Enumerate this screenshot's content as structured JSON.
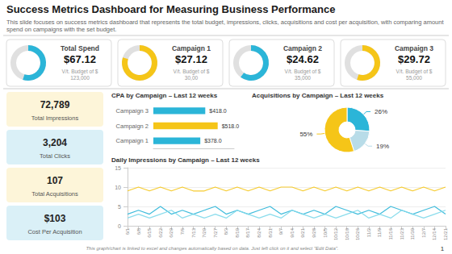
{
  "chart_data": [
    {
      "type": "text",
      "title": "Success Metrics Dashboard for Measuring Business Performance",
      "subtitle": "This slide focuses on success metrics dashboard that represents the total budget, impressions, clicks, acquisitions and cost per acquisition, with comparing amount spend on campaigns with the set budget.",
      "annotations": [
        "This graph/chart is linked to excel and changes automatically based on data. Just left click on it and select \"Edit Data\".",
        "1"
      ]
    },
    {
      "type": "ring",
      "title": "Total Spend",
      "values": [
        0.55
      ],
      "color": "#2bb5d8",
      "annotations": [
        "$67.12",
        "V/t. Budget of $\n123,000"
      ]
    },
    {
      "type": "ring",
      "title": "Campaign 1",
      "values": [
        0.8
      ],
      "color": "#f5c518",
      "annotations": [
        "$27.12",
        "V/t. Budget of $\n30,00"
      ]
    },
    {
      "type": "ring",
      "title": "Campaign 2",
      "values": [
        0.6
      ],
      "color": "#2bb5d8",
      "annotations": [
        "$24.62",
        "V/t. Budget of $\n35,000"
      ]
    },
    {
      "type": "ring",
      "title": "Campaign 3",
      "values": [
        0.55
      ],
      "color": "#f5c518",
      "annotations": [
        "$29.72",
        "V/t. Budget of $\n55,000"
      ]
    },
    {
      "type": "tiles",
      "annotations": [
        "72,789",
        "Total Impressions",
        "3,204",
        "Total Clicks",
        "107",
        "Total Acquisitions",
        "$103",
        "Cost Per Acquisition"
      ],
      "colors": [
        "#fdf5d9",
        "#daf0f7",
        "#fdf5d9",
        "#daf0f7"
      ]
    },
    {
      "type": "bar",
      "orientation": "horizontal",
      "title": "CPA by Campaign – Last 12 weeks",
      "categories": [
        "Campaign 1",
        "Campaign 2",
        "Campaign 3"
      ],
      "values": [
        378.0,
        518.0,
        418.0
      ],
      "value_labels": [
        "$378.0",
        "$518.0",
        "$418.0"
      ],
      "data_labels": true,
      "colors": [
        "#2bb5d8",
        "#f5c518",
        "#2bb5d8"
      ],
      "xlim": [
        0,
        650
      ],
      "xticks": [],
      "tick_labels": "y",
      "grid": false
    },
    {
      "type": "pie",
      "title": "Acquisitions by Campaign – Last 12 weeks",
      "values": [
        26,
        19,
        55
      ],
      "value_labels": [
        "26%",
        "19%",
        "55%"
      ],
      "data_labels": true,
      "colors": [
        "#2bb5d8",
        "#b8dce8",
        "#f5c518"
      ]
    },
    {
      "type": "line",
      "title": "Daily Impressions by Campaign – Last 12 weeks",
      "categories": [
        "6/1",
        "6/8",
        "6/15",
        "6/22",
        "6/29",
        "7/6",
        "7/13",
        "7/20",
        "7/27",
        "8/3",
        "8/10",
        "8/17",
        "8/24",
        "8/31",
        "9/7",
        "9/14",
        "9/21",
        "9/28",
        "10/5",
        "10/12",
        "10/19",
        "10/26",
        "11/2",
        "11/9",
        "11/16",
        "11/23",
        "11/30",
        "12/7",
        "12/14",
        "12/21"
      ],
      "series": [
        {
          "color": "#f5c518",
          "values": [
            9,
            10,
            9,
            10,
            9,
            10,
            9,
            9,
            10,
            9,
            10,
            9,
            10,
            9,
            10,
            10,
            9,
            10,
            9,
            10,
            9,
            10,
            9,
            10,
            9,
            10,
            9,
            10,
            9,
            10
          ]
        },
        {
          "color": "#2bb5d8",
          "values": [
            3,
            4,
            3,
            5,
            3,
            4,
            3,
            4,
            5,
            3,
            4,
            3,
            4,
            5,
            3,
            4,
            3,
            4,
            3,
            5,
            4,
            3,
            4,
            3,
            5,
            4,
            3,
            4,
            5,
            3
          ]
        },
        {
          "color": "#7dd8ea",
          "values": [
            2,
            3,
            2,
            3,
            4,
            2,
            3,
            2,
            3,
            2,
            4,
            3,
            2,
            3,
            2,
            4,
            3,
            2,
            3,
            2,
            3,
            4,
            2,
            3,
            2,
            4,
            3,
            2,
            3,
            4
          ]
        }
      ],
      "ylim": [
        0,
        15
      ],
      "yticks": [
        0,
        5,
        10,
        15
      ],
      "grid": true
    }
  ]
}
